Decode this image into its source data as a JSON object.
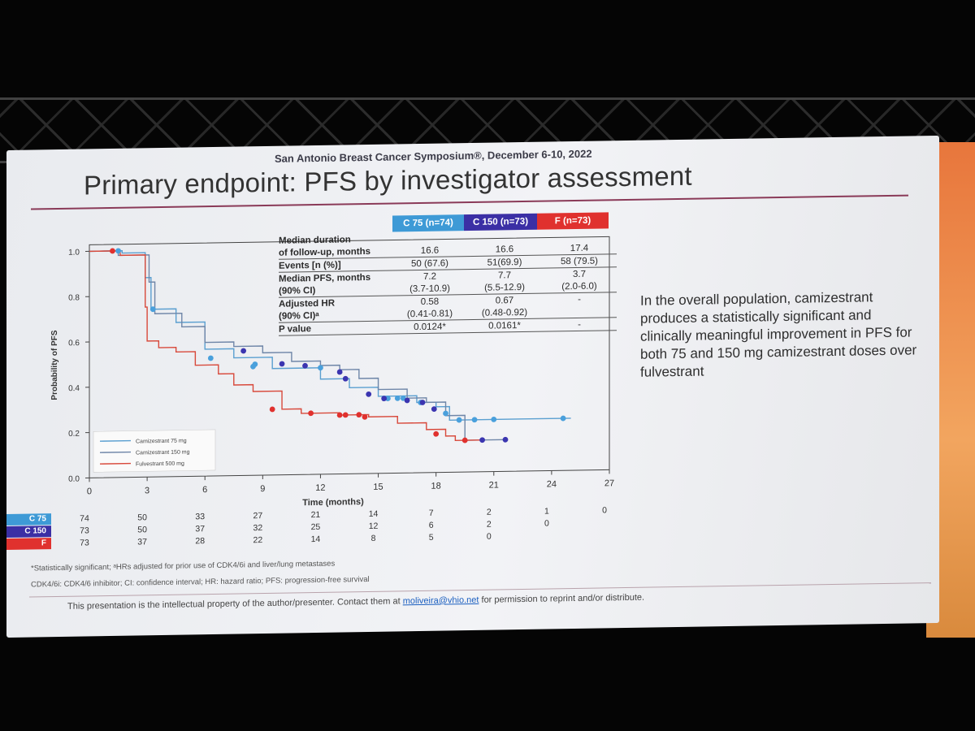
{
  "header": {
    "conference": "San Antonio Breast Cancer Symposium®, December 6-10, 2022",
    "title": "Primary endpoint: PFS by investigator assessment"
  },
  "table": {
    "columns": [
      {
        "label": "C 75 (n=74)",
        "color": "#3e9ad6"
      },
      {
        "label": "C 150 (n=73)",
        "color": "#3b2fa5"
      },
      {
        "label": "F (n=73)",
        "color": "#e0312e"
      }
    ],
    "rows": [
      {
        "label1": "Median duration",
        "label2": "of follow-up, months",
        "v1": [
          "",
          "16.6"
        ],
        "v2": [
          "",
          "16.6"
        ],
        "v3": [
          "",
          "17.4"
        ]
      },
      {
        "label1": "Events [n (%)]",
        "label2": "",
        "v1": [
          "50 (67.6)"
        ],
        "v2": [
          "51(69.9)"
        ],
        "v3": [
          "58 (79.5)"
        ]
      },
      {
        "label1": "Median PFS, months",
        "label2": "(90% CI)",
        "v1": [
          "7.2",
          "(3.7-10.9)"
        ],
        "v2": [
          "7.7",
          "(5.5-12.9)"
        ],
        "v3": [
          "3.7",
          "(2.0-6.0)"
        ]
      },
      {
        "label1": "Adjusted HR",
        "label2": "(90% CI)ᵃ",
        "v1": [
          "0.58",
          "(0.41-0.81)"
        ],
        "v2": [
          "0.67",
          "(0.48-0.92)"
        ],
        "v3": [
          "-",
          ""
        ]
      },
      {
        "label1": "P value",
        "label2": "",
        "v1": [
          "0.0124*"
        ],
        "v2": [
          "0.0161*"
        ],
        "v3": [
          "-"
        ]
      }
    ]
  },
  "annotation": "In the overall population, camizestrant produces a statistically significant and clinically meaningful improvement in PFS for both 75 and 150 mg camizestrant doses over fulvestrant",
  "risk_table": {
    "rows": [
      {
        "label": "C 75",
        "color": "#3e9ad6",
        "values": [
          "74",
          "50",
          "33",
          "27",
          "21",
          "14",
          "7",
          "2",
          "1",
          "0"
        ]
      },
      {
        "label": "C 150",
        "color": "#3b2fa5",
        "values": [
          "73",
          "50",
          "37",
          "32",
          "25",
          "12",
          "6",
          "2",
          "0"
        ]
      },
      {
        "label": "F",
        "color": "#e0312e",
        "values": [
          "73",
          "37",
          "28",
          "22",
          "14",
          "8",
          "5",
          "0"
        ]
      }
    ]
  },
  "footnotes": {
    "line1": "*Statistically significant; ᵃHRs adjusted for prior use of CDK4/6i and liver/lung metastases",
    "line2": "CDK4/6i: CDK4/6 inhibitor; CI: confidence interval; HR: hazard ratio; PFS: progression-free survival",
    "disclaimer_pre": "This presentation is the intellectual property of the author/presenter. Contact them at ",
    "email": "moliveira@vhio.net",
    "disclaimer_post": " for permission to reprint and/or distribute."
  },
  "chart_data": {
    "type": "line",
    "xlabel": "Time (months)",
    "ylabel": "Probability of PFS",
    "xlim": [
      0,
      27
    ],
    "ylim": [
      0,
      1.0
    ],
    "xticks": [
      0,
      3,
      6,
      9,
      12,
      15,
      18,
      21,
      24,
      27
    ],
    "yticks": [
      0.0,
      0.2,
      0.4,
      0.6,
      0.8,
      1.0
    ],
    "legend_position": "bottom-left",
    "series": [
      {
        "name": "Camizestrant 75 mg",
        "color": "#5a9fd0",
        "x": [
          0,
          1.7,
          2.9,
          3.2,
          4.5,
          6.0,
          7.5,
          9.5,
          12.0,
          13.5,
          15.0,
          17.0,
          18.0,
          18.7,
          20.0,
          25.0
        ],
        "y": [
          1.0,
          0.99,
          0.88,
          0.74,
          0.68,
          0.56,
          0.52,
          0.47,
          0.42,
          0.38,
          0.34,
          0.31,
          0.29,
          0.23,
          0.23,
          0.23
        ],
        "censor_x": [
          1.5,
          3.3,
          6.3,
          8.5,
          8.6,
          12.0,
          15.5,
          16.0,
          16.3,
          17.2,
          18.5,
          19.2,
          20.0,
          21.0,
          24.6
        ],
        "censor_y": [
          1.0,
          0.74,
          0.52,
          0.48,
          0.49,
          0.47,
          0.33,
          0.33,
          0.33,
          0.31,
          0.26,
          0.23,
          0.23,
          0.23,
          0.23
        ]
      },
      {
        "name": "Camizestrant 150 mg",
        "color": "#6f86a8",
        "x": [
          0,
          1.5,
          3.1,
          3.4,
          4.8,
          6.0,
          7.5,
          9.0,
          10.5,
          12.0,
          13.0,
          14.0,
          15.0,
          16.5,
          17.5,
          18.5,
          19.5,
          21.5
        ],
        "y": [
          1.0,
          0.98,
          0.86,
          0.72,
          0.66,
          0.59,
          0.57,
          0.54,
          0.5,
          0.48,
          0.46,
          0.42,
          0.37,
          0.33,
          0.31,
          0.25,
          0.14,
          0.14
        ],
        "censor_x": [
          8.0,
          10.0,
          11.2,
          13.0,
          13.3,
          14.5,
          15.3,
          16.5,
          17.3,
          17.9,
          20.4,
          21.6
        ],
        "censor_y": [
          0.55,
          0.49,
          0.48,
          0.45,
          0.42,
          0.35,
          0.33,
          0.32,
          0.31,
          0.28,
          0.14,
          0.14
        ]
      },
      {
        "name": "Fulvestrant 500 mg",
        "color": "#d8493b",
        "x": [
          0,
          1.6,
          2.9,
          3.0,
          3.6,
          4.5,
          5.5,
          6.7,
          7.5,
          8.5,
          10.0,
          11.0,
          13.0,
          14.5,
          16.0,
          17.5,
          18.5,
          19.0,
          20.5
        ],
        "y": [
          1.0,
          0.98,
          0.75,
          0.6,
          0.57,
          0.55,
          0.49,
          0.45,
          0.4,
          0.37,
          0.29,
          0.27,
          0.26,
          0.25,
          0.22,
          0.19,
          0.16,
          0.14,
          0.14
        ],
        "censor_x": [
          1.2,
          9.5,
          11.5,
          13.0,
          13.3,
          14.0,
          14.3,
          18.0,
          19.5
        ],
        "censor_y": [
          1.0,
          0.29,
          0.27,
          0.26,
          0.26,
          0.26,
          0.25,
          0.17,
          0.14
        ]
      }
    ]
  }
}
